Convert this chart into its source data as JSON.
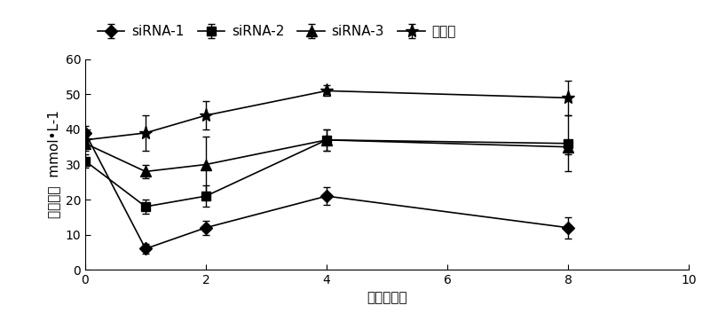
{
  "x": [
    0,
    1,
    2,
    4,
    8
  ],
  "siRNA1_y": [
    39,
    6,
    12,
    21,
    12
  ],
  "siRNA1_err": [
    2,
    1.5,
    2,
    2.5,
    3
  ],
  "siRNA2_y": [
    31,
    18,
    21,
    37,
    36
  ],
  "siRNA2_err": [
    2,
    2,
    3,
    3,
    8
  ],
  "siRNA3_y": [
    36,
    28,
    30,
    37,
    35
  ],
  "siRNA3_err": [
    2,
    2,
    8,
    3,
    2
  ],
  "control_y": [
    37,
    39,
    44,
    51,
    49
  ],
  "control_err": [
    2,
    5,
    4,
    1.5,
    5
  ],
  "xlabel": "给药后天数",
  "ylabel_chinese": "血糖浓度",
  "ylabel_units": "mmol•L-1",
  "xlim": [
    0,
    10
  ],
  "ylim": [
    0,
    60
  ],
  "xticks": [
    0,
    2,
    4,
    6,
    8,
    10
  ],
  "yticks": [
    0,
    10,
    20,
    30,
    40,
    50,
    60
  ],
  "legend_labels": [
    "siRNA-1",
    "siRNA-2",
    "siRNA-3",
    "对照组"
  ],
  "line_color": "black",
  "markers": [
    "D",
    "s",
    "^",
    "*"
  ],
  "markersizes": [
    7,
    7,
    8,
    11
  ],
  "label_fontsize": 11,
  "tick_fontsize": 10,
  "legend_fontsize": 11
}
